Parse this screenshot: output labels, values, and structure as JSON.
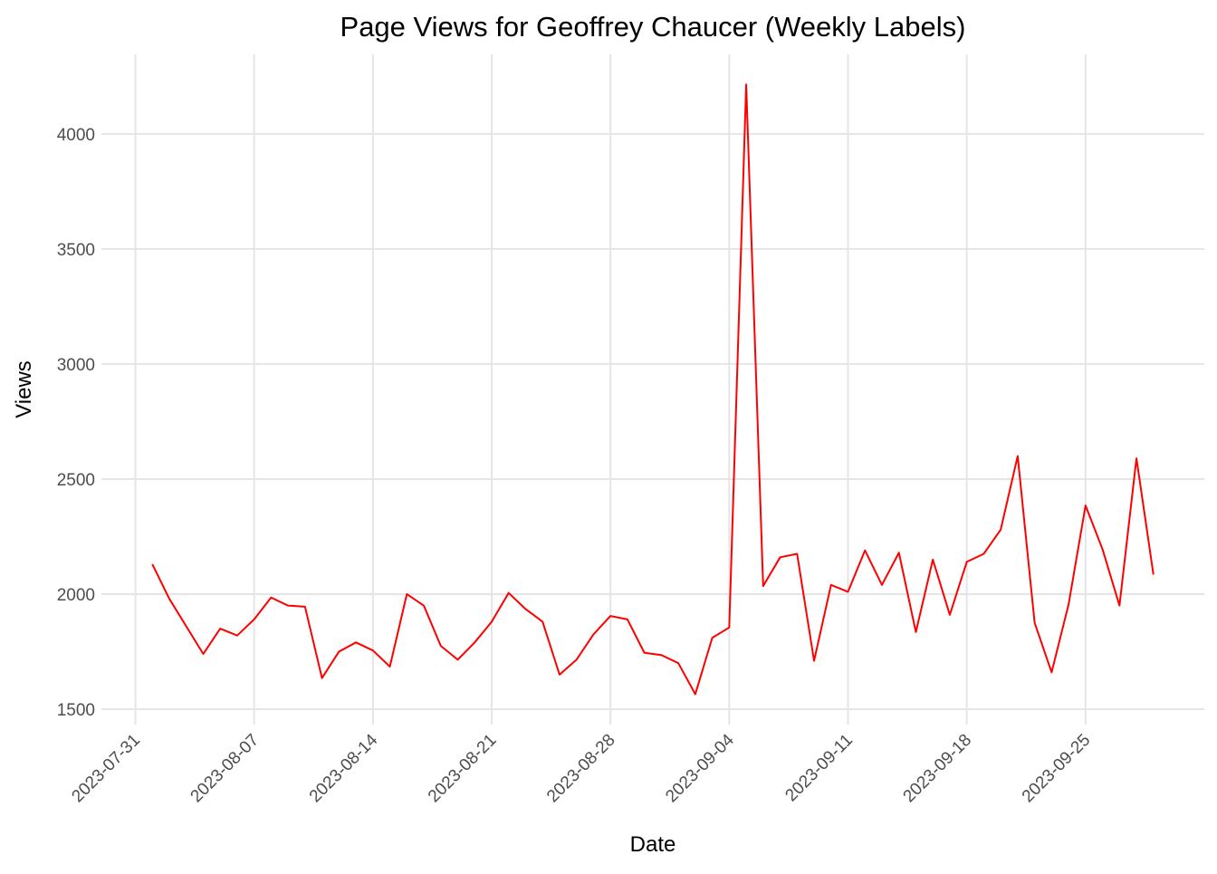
{
  "chart_data": {
    "type": "line",
    "title": "Page Views for Geoffrey Chaucer (Weekly Labels)",
    "x_label": "Date",
    "y_label": "Views",
    "x": [
      "2023-08-01",
      "2023-08-02",
      "2023-08-03",
      "2023-08-04",
      "2023-08-05",
      "2023-08-06",
      "2023-08-07",
      "2023-08-08",
      "2023-08-09",
      "2023-08-10",
      "2023-08-11",
      "2023-08-12",
      "2023-08-13",
      "2023-08-14",
      "2023-08-15",
      "2023-08-16",
      "2023-08-17",
      "2023-08-18",
      "2023-08-19",
      "2023-08-20",
      "2023-08-21",
      "2023-08-22",
      "2023-08-23",
      "2023-08-24",
      "2023-08-25",
      "2023-08-26",
      "2023-08-27",
      "2023-08-28",
      "2023-08-29",
      "2023-08-30",
      "2023-08-31",
      "2023-09-01",
      "2023-09-02",
      "2023-09-03",
      "2023-09-04",
      "2023-09-05",
      "2023-09-06",
      "2023-09-07",
      "2023-09-08",
      "2023-09-09",
      "2023-09-10",
      "2023-09-11",
      "2023-09-12",
      "2023-09-13",
      "2023-09-14",
      "2023-09-15",
      "2023-09-16",
      "2023-09-17",
      "2023-09-18",
      "2023-09-19",
      "2023-09-20",
      "2023-09-21",
      "2023-09-22",
      "2023-09-23",
      "2023-09-24",
      "2023-09-25",
      "2023-09-26",
      "2023-09-27",
      "2023-09-28",
      "2023-09-29"
    ],
    "series": [
      {
        "name": "Views",
        "color": "#ff0000",
        "values": [
          2130,
          1980,
          1860,
          1740,
          1850,
          1820,
          1890,
          1985,
          1950,
          1945,
          1635,
          1750,
          1790,
          1755,
          1685,
          2000,
          1950,
          1775,
          1715,
          1790,
          1880,
          2005,
          1935,
          1880,
          1650,
          1715,
          1825,
          1905,
          1890,
          1745,
          1735,
          1700,
          1565,
          1810,
          1855,
          4215,
          2035,
          2160,
          2175,
          1710,
          2040,
          2010,
          2190,
          2040,
          2180,
          1835,
          2150,
          1910,
          2140,
          2175,
          2280,
          2600,
          1875,
          1660,
          1955,
          2385,
          2195,
          1950,
          2590,
          2085
        ]
      }
    ],
    "xlim": [
      "2023-07-29",
      "2023-10-02"
    ],
    "xticks": [
      "2023-07-31",
      "2023-08-07",
      "2023-08-14",
      "2023-08-21",
      "2023-08-28",
      "2023-09-04",
      "2023-09-11",
      "2023-09-18",
      "2023-09-25"
    ],
    "ylim": [
      1433,
      4346
    ],
    "yticks": [
      1500,
      2000,
      2500,
      3000,
      3500,
      4000
    ],
    "grid": true
  }
}
